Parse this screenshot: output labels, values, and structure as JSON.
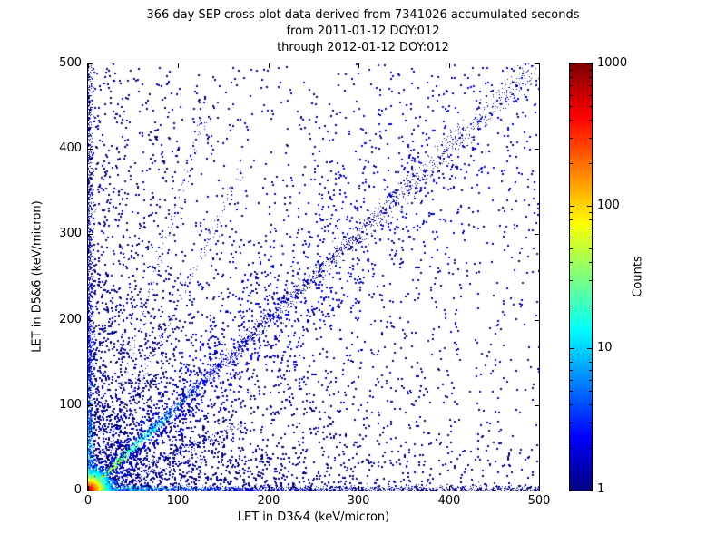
{
  "chart_data": {
    "type": "scatter",
    "title_lines": [
      "366 day SEP cross plot data derived from 7341026 accumulated seconds",
      "from 2011-01-12 DOY:012",
      "through 2012-01-12 DOY:012"
    ],
    "xlabel": "LET in D3&4 (keV/micron)",
    "ylabel": "LET in D5&6 (keV/micron)",
    "xlim": [
      0,
      500
    ],
    "ylim": [
      0,
      500
    ],
    "x_ticks": [
      0,
      100,
      200,
      300,
      400,
      500
    ],
    "y_ticks": [
      0,
      100,
      200,
      300,
      400,
      500
    ],
    "grid": false,
    "point_color_low": "#000080",
    "point_color_high": "#8b0000",
    "colorbar": {
      "label": "Counts",
      "scale": "log",
      "range": [
        1,
        1000
      ],
      "ticks": [
        1,
        10,
        100,
        1000
      ],
      "colormap": "jet"
    },
    "components": [
      {
        "kind": "background_exp",
        "n": 1800,
        "tau_x": 160,
        "tau_y": 160,
        "size": 2,
        "seed": 101
      },
      {
        "kind": "background_exp",
        "n": 900,
        "tau_x": 55,
        "tau_y": 280,
        "size": 2,
        "seed": 102
      },
      {
        "kind": "background_exp",
        "n": 700,
        "tau_x": 280,
        "tau_y": 55,
        "size": 2,
        "seed": 103
      },
      {
        "kind": "background_uniform",
        "n": 1000,
        "size": 2,
        "seed": 104
      },
      {
        "kind": "edge_vertical",
        "n": 1800,
        "sigma": 2.6,
        "len": 500,
        "power": 1.8,
        "count_peak": 28,
        "count_tau": 70,
        "size": 1,
        "seed": 44
      },
      {
        "kind": "edge_horizontal",
        "n": 1800,
        "sigma": 2.6,
        "len": 500,
        "power": 1.8,
        "count_peak": 28,
        "count_tau": 70,
        "size": 1,
        "seed": 55
      },
      {
        "kind": "diffuse_diag",
        "n": 1300,
        "min": 25,
        "max": 500,
        "power": 1.25,
        "spread": 0.13,
        "base_sigma": 4,
        "count_max": 2.5,
        "size": 2,
        "seed": 33
      },
      {
        "kind": "ridge_diag",
        "n": 2600,
        "power": 2.2,
        "max": 500,
        "sigma0": 1.5,
        "sigma_slope": 0.012,
        "count_peak": 85,
        "count_tau": 32,
        "size": 1,
        "seed": 22
      },
      {
        "kind": "ray",
        "slope": 2.2,
        "n": 240,
        "max_u": 170,
        "power": 1.6,
        "sigma": 2.5,
        "size": 1,
        "seed": 66
      },
      {
        "kind": "ray",
        "slope": 3.4,
        "n": 180,
        "max_u": 130,
        "power": 1.6,
        "sigma": 2.5,
        "size": 1,
        "seed": 67
      },
      {
        "kind": "ray",
        "slope": 0.45,
        "n": 240,
        "max_u": 170,
        "power": 1.6,
        "sigma": 2.5,
        "size": 1,
        "seed": 68
      },
      {
        "kind": "ray",
        "slope": 0.29,
        "n": 180,
        "max_u": 130,
        "power": 1.6,
        "sigma": 2.5,
        "size": 1,
        "seed": 69
      },
      {
        "kind": "origin_blob",
        "n": 2300,
        "falloff": 8,
        "count_peak": 900,
        "count_scale": 5,
        "size": 2,
        "seed": 11
      }
    ]
  }
}
